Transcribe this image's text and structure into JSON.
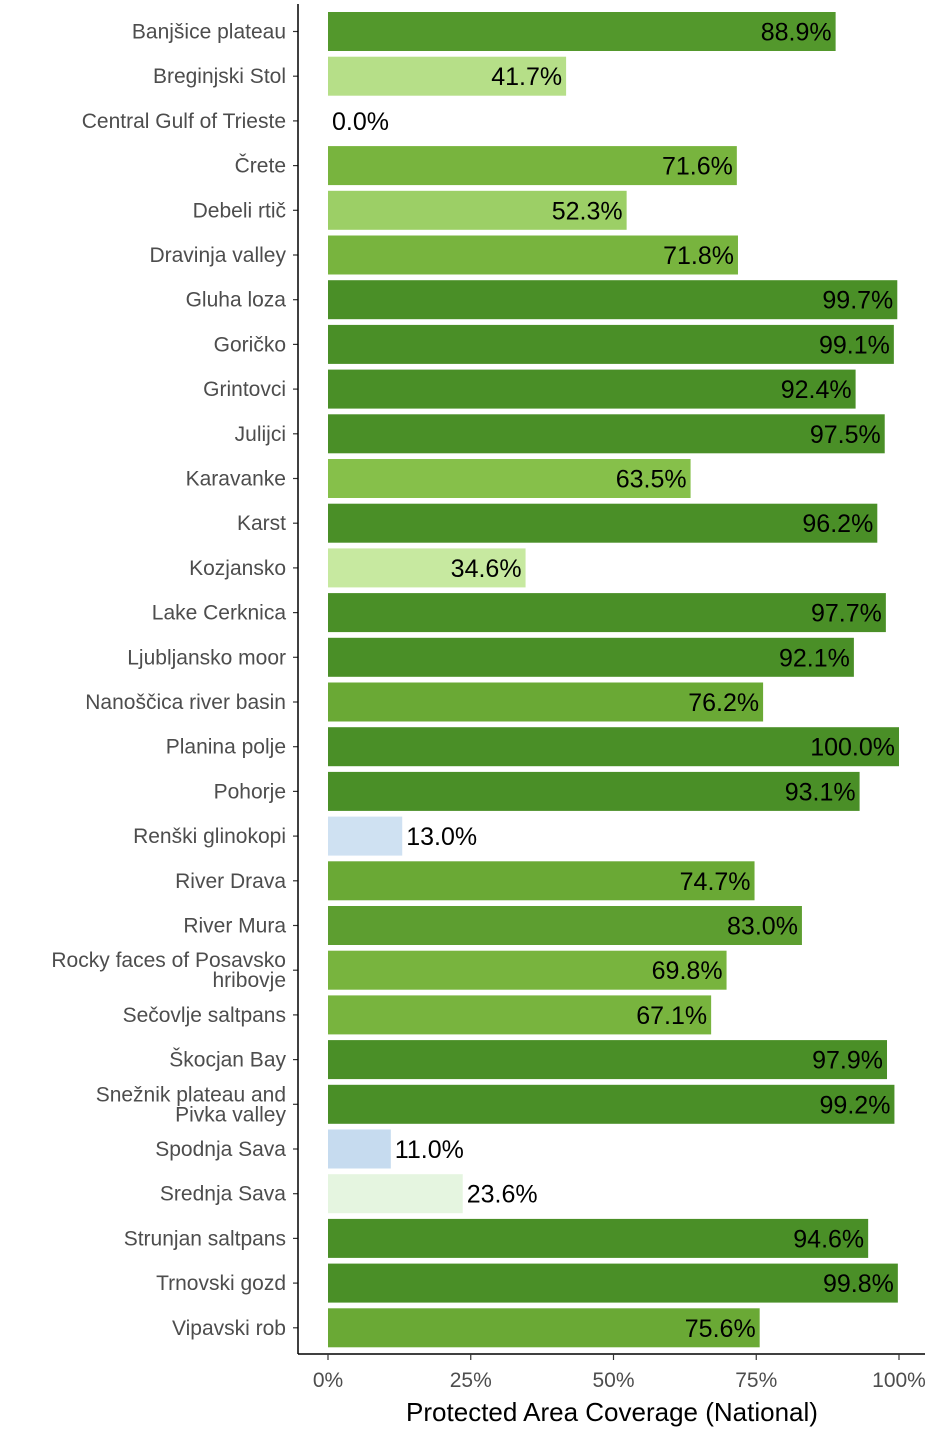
{
  "chart_data": {
    "type": "bar",
    "orientation": "horizontal",
    "categories": [
      "Banjšice plateau",
      "Breginjski Stol",
      "Central Gulf of Trieste",
      "Črete",
      "Debeli rtič",
      "Dravinja valley",
      "Gluha loza",
      "Goričko",
      "Grintovci",
      "Julijci",
      "Karavanke",
      "Karst",
      "Kozjansko",
      "Lake Cerknica",
      "Ljubljansko moor",
      "Nanoščica river basin",
      "Planina polje",
      "Pohorje",
      "Renški glinokopi",
      "River Drava",
      "River Mura",
      "Rocky faces of Posavsko hribovje",
      "Sečovlje saltpans",
      "Škocjan Bay",
      "Snežnik plateau and Pivka valley",
      "Spodnja Sava",
      "Srednja Sava",
      "Strunjan saltpans",
      "Trnovski gozd",
      "Vipavski rob"
    ],
    "values": [
      88.9,
      41.7,
      0.0,
      71.6,
      52.3,
      71.8,
      99.7,
      99.1,
      92.4,
      97.5,
      63.5,
      96.2,
      34.6,
      97.7,
      92.1,
      76.2,
      100.0,
      93.1,
      13.0,
      74.7,
      83.0,
      69.8,
      67.1,
      97.9,
      99.2,
      11.0,
      23.6,
      94.6,
      99.8,
      75.6
    ],
    "value_labels": [
      "88.9%",
      "41.7%",
      "0.0%",
      "71.6%",
      "52.3%",
      "71.8%",
      "99.7%",
      "99.1%",
      "92.4%",
      "97.5%",
      "63.5%",
      "96.2%",
      "34.6%",
      "97.7%",
      "92.1%",
      "76.2%",
      "100.0%",
      "93.1%",
      "13.0%",
      "74.7%",
      "83.0%",
      "69.8%",
      "67.1%",
      "97.9%",
      "99.2%",
      "11.0%",
      "23.6%",
      "94.6%",
      "99.8%",
      "75.6%"
    ],
    "xlabel": "Protected Area Coverage (National)",
    "ylabel": "",
    "xlim": [
      0,
      100
    ],
    "x_ticks": [
      0,
      25,
      50,
      75,
      100
    ],
    "x_tick_labels": [
      "0%",
      "25%",
      "50%",
      "75%",
      "100%"
    ],
    "grid": false,
    "legend": "none",
    "color_scale": [
      {
        "min": 0,
        "color": "#c6dbef"
      },
      {
        "min": 12,
        "color": "#cfe1f2"
      },
      {
        "min": 20,
        "color": "#e5f5e0"
      },
      {
        "min": 30,
        "color": "#c7e9a0"
      },
      {
        "min": 40,
        "color": "#b6df88"
      },
      {
        "min": 50,
        "color": "#9ccf66"
      },
      {
        "min": 60,
        "color": "#86c04a"
      },
      {
        "min": 66,
        "color": "#78b43e"
      },
      {
        "min": 73,
        "color": "#6aa935"
      },
      {
        "min": 80,
        "color": "#5d9e30"
      },
      {
        "min": 86,
        "color": "#53982c"
      },
      {
        "min": 90,
        "color": "#4a8f27"
      }
    ]
  }
}
